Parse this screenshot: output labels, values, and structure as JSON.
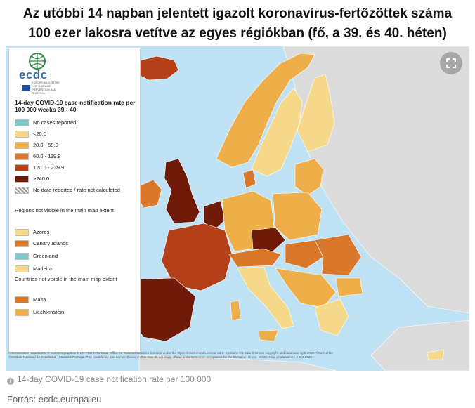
{
  "headline": {
    "line1": "Az utóbbi 14 napban jelentett igazolt koronavírus-fertőzöttek száma",
    "line2": "100 ezer lakosra vetítve az egyes régiókban (fő, a 39. és 40. héten)"
  },
  "map": {
    "logo_text": "ecdc",
    "logo_sub": "EUROPEAN CENTRE FOR DISEASE PREVENTION AND CONTROL",
    "expand_icon": "expand-icon",
    "legend": {
      "title": "14-day COVID-19 case notification rate per 100 000 weeks 39 - 40",
      "classes": [
        {
          "label": "No cases reported",
          "color": "#7fc8cc"
        },
        {
          "label": "<20.0",
          "color": "#f6d98a"
        },
        {
          "label": "20.0 - 59.9",
          "color": "#eeaf4a"
        },
        {
          "label": "60.0 - 119.9",
          "color": "#d9772a"
        },
        {
          "label": "120.0 - 239.9",
          "color": "#b4401a"
        },
        {
          "label": ">240.0",
          "color": "#701a0a"
        },
        {
          "label": "No data reported / rate not calculated",
          "color": "#c8c8c8"
        }
      ],
      "regions_heading": "Regions not visible in the main map extent",
      "regions": [
        {
          "label": "Azores",
          "color": "#f6d98a"
        },
        {
          "label": "Canary Islands",
          "color": "#d9772a"
        },
        {
          "label": "Greenland",
          "color": "#7fc8cc"
        },
        {
          "label": "Madeira",
          "color": "#f6d98a"
        }
      ],
      "countries_heading": "Countries not visible in the main map extent",
      "countries": [
        {
          "label": "Malta",
          "color": "#d9772a"
        },
        {
          "label": "Liechtenstein",
          "color": "#eeaf4a"
        }
      ]
    },
    "credits_line1": "Administrative boundaries: © EuroGeographics © UN-FAO © Turkstat. Office for National Statistics licensed under the Open Government Licence v.3.0. Contains OS data © Crown copyright and database right 2020. ©Kartverket",
    "credits_line2": "©Instituto Nacional de Estatística - Statistics Portugal. The boundaries and names shown on this map do not imply official endorsement or acceptance by the European Union. ECDC. Map produced on: 9 Oct 2020"
  },
  "caption": "14-day COVID-19 case notification rate per 100 000",
  "source": "Forrás: ecdc.europa.eu"
}
